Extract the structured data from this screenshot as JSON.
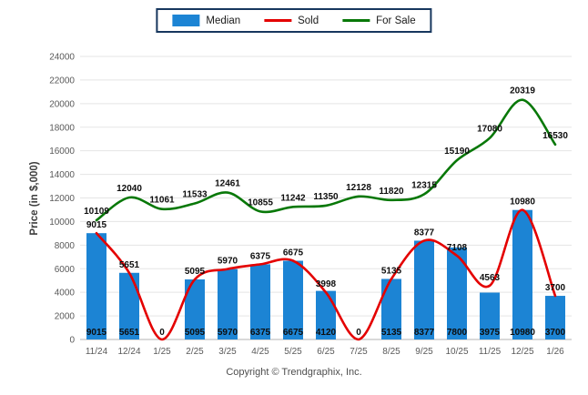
{
  "legend": {
    "items": [
      {
        "label": "Median",
        "color": "#1c84d4",
        "type": "bar"
      },
      {
        "label": "Sold",
        "color": "#e40000",
        "type": "line"
      },
      {
        "label": "For Sale",
        "color": "#087808",
        "type": "line"
      }
    ]
  },
  "chart_data": {
    "type": "bar+line",
    "categories": [
      "11/24",
      "12/24",
      "1/25",
      "2/25",
      "3/25",
      "4/25",
      "5/25",
      "6/25",
      "7/25",
      "8/25",
      "9/25",
      "10/25",
      "11/25",
      "12/25",
      "1/26"
    ],
    "series": [
      {
        "name": "Median",
        "type": "bar",
        "color": "#1c84d4",
        "values": [
          9015,
          5651,
          0,
          5095,
          5970,
          6375,
          6675,
          4120,
          0,
          5135,
          8377,
          7800,
          3975,
          10980,
          3700
        ]
      },
      {
        "name": "Sold",
        "type": "line",
        "color": "#e40000",
        "values": [
          9015,
          5651,
          0,
          5095,
          5970,
          6375,
          6675,
          3998,
          0,
          5135,
          8377,
          7108,
          4563,
          10980,
          3700
        ]
      },
      {
        "name": "For Sale",
        "type": "line",
        "color": "#087808",
        "values": [
          10109,
          12040,
          11061,
          11533,
          12461,
          10855,
          11242,
          11350,
          12128,
          11820,
          12315,
          15190,
          17080,
          20319,
          16530
        ]
      }
    ],
    "title": "",
    "xlabel": "",
    "ylabel": "Price (in $,000)",
    "ylim": [
      0,
      24000
    ],
    "ytick_step": 2000,
    "grid": true,
    "legend_position": "top-center",
    "grid_color": "#e5e5e5",
    "axis_line_color": "#b3b3b3"
  },
  "footer": {
    "copyright": "Copyright © Trendgraphix, Inc."
  }
}
